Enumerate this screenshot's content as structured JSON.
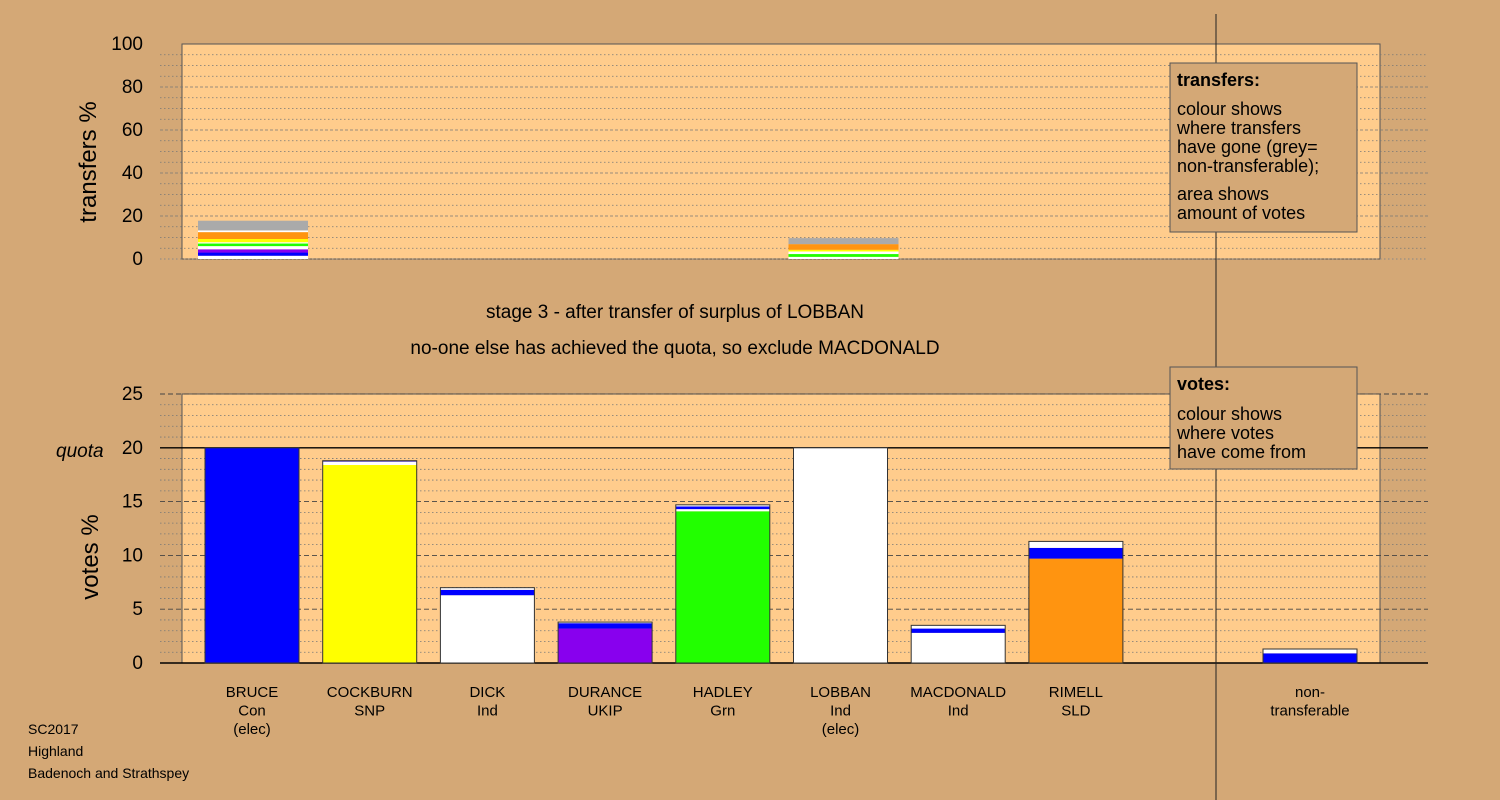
{
  "stage_title": "stage 3 - after transfer of surplus of LOBBAN",
  "stage_subtitle": "no-one else has achieved the quota, so exclude MACDONALD",
  "footer": [
    "SC2017",
    "Highland",
    "Badenoch and Strathspey"
  ],
  "legend_transfers": {
    "heading": "transfers:",
    "lines1": [
      "colour shows",
      "where transfers",
      "have gone (grey=",
      "non-transferable);"
    ],
    "lines2": [
      "area shows",
      "amount of votes"
    ]
  },
  "legend_votes": {
    "heading": "votes:",
    "lines": [
      "colour shows",
      "where votes",
      "have come from"
    ]
  },
  "colors": {
    "background": "#d4a876",
    "plot_bg": "#ffcc8c",
    "Con": "#0000ff",
    "SNP": "#ffff00",
    "Ind": "#ffffff",
    "UKIP": "#8800ee",
    "Grn": "#22ff00",
    "SLD": "#ff9410",
    "nontransferable": "#aaaaaa"
  },
  "chart_data": [
    {
      "type": "bar",
      "name": "transfers",
      "ylabel": "transfers %",
      "ylim": [
        0,
        100
      ],
      "yticks": [
        0,
        20,
        40,
        60,
        80,
        100
      ],
      "grid": true,
      "bars": [
        {
          "position": 0,
          "segments": [
            {
              "color": "Ind",
              "value": 1.5
            },
            {
              "color": "Con",
              "value": 1.5
            },
            {
              "color": "UKIP",
              "value": 1.5
            },
            {
              "color": "Ind",
              "value": 1.5
            },
            {
              "color": "Grn",
              "value": 1.2
            },
            {
              "color": "Ind",
              "value": 0.6
            },
            {
              "color": "SNP",
              "value": 1.5
            },
            {
              "color": "SLD",
              "value": 3.2
            },
            {
              "color": "Ind",
              "value": 0.8
            },
            {
              "color": "nontransferable",
              "value": 4.5
            }
          ]
        },
        {
          "position": 5,
          "segments": [
            {
              "color": "Ind",
              "value": 1.0
            },
            {
              "color": "Grn",
              "value": 1.3
            },
            {
              "color": "Ind",
              "value": 1.2
            },
            {
              "color": "SNP",
              "value": 0.8
            },
            {
              "color": "SLD",
              "value": 2.6
            },
            {
              "color": "nontransferable",
              "value": 2.8
            }
          ]
        }
      ]
    },
    {
      "type": "bar",
      "name": "votes",
      "ylabel": "votes %",
      "ylim": [
        0,
        25
      ],
      "yticks": [
        0,
        5,
        10,
        15,
        20,
        25
      ],
      "quota": 20,
      "quota_label": "quota",
      "grid": true,
      "categories": [
        [
          "BRUCE",
          "Con",
          "(elec)"
        ],
        [
          "COCKBURN",
          "SNP"
        ],
        [
          "DICK",
          "Ind"
        ],
        [
          "DURANCE",
          "UKIP"
        ],
        [
          "HADLEY",
          "Grn"
        ],
        [
          "LOBBAN",
          "Ind",
          "(elec)"
        ],
        [
          "MACDONALD",
          "Ind"
        ],
        [
          "RIMELL",
          "SLD"
        ],
        [
          "non-",
          "transferable"
        ]
      ],
      "bars": [
        {
          "segments": [
            {
              "color": "Con",
              "value": 20.0
            }
          ]
        },
        {
          "segments": [
            {
              "color": "SNP",
              "value": 18.4
            },
            {
              "color": "Ind",
              "value": 0.3
            },
            {
              "color": "Con",
              "value": 0.05
            },
            {
              "color": "Ind",
              "value": 0.05
            }
          ]
        },
        {
          "segments": [
            {
              "color": "Ind",
              "value": 6.3
            },
            {
              "color": "Con",
              "value": 0.5
            },
            {
              "color": "Ind",
              "value": 0.2
            }
          ]
        },
        {
          "segments": [
            {
              "color": "UKIP",
              "value": 3.2
            },
            {
              "color": "Con",
              "value": 0.5
            },
            {
              "color": "Ind",
              "value": 0.1
            }
          ]
        },
        {
          "segments": [
            {
              "color": "Grn",
              "value": 14.1
            },
            {
              "color": "Ind",
              "value": 0.2
            },
            {
              "color": "Con",
              "value": 0.25
            },
            {
              "color": "Ind",
              "value": 0.15
            }
          ]
        },
        {
          "segments": [
            {
              "color": "Ind",
              "value": 20.0
            }
          ]
        },
        {
          "segments": [
            {
              "color": "Ind",
              "value": 2.8
            },
            {
              "color": "Con",
              "value": 0.4
            },
            {
              "color": "Ind",
              "value": 0.3
            }
          ]
        },
        {
          "segments": [
            {
              "color": "SLD",
              "value": 9.7
            },
            {
              "color": "Con",
              "value": 1.0
            },
            {
              "color": "Ind",
              "value": 0.6
            }
          ]
        },
        {
          "segments": [
            {
              "color": "Con",
              "value": 0.9
            },
            {
              "color": "Ind",
              "value": 0.4
            }
          ]
        }
      ]
    }
  ]
}
